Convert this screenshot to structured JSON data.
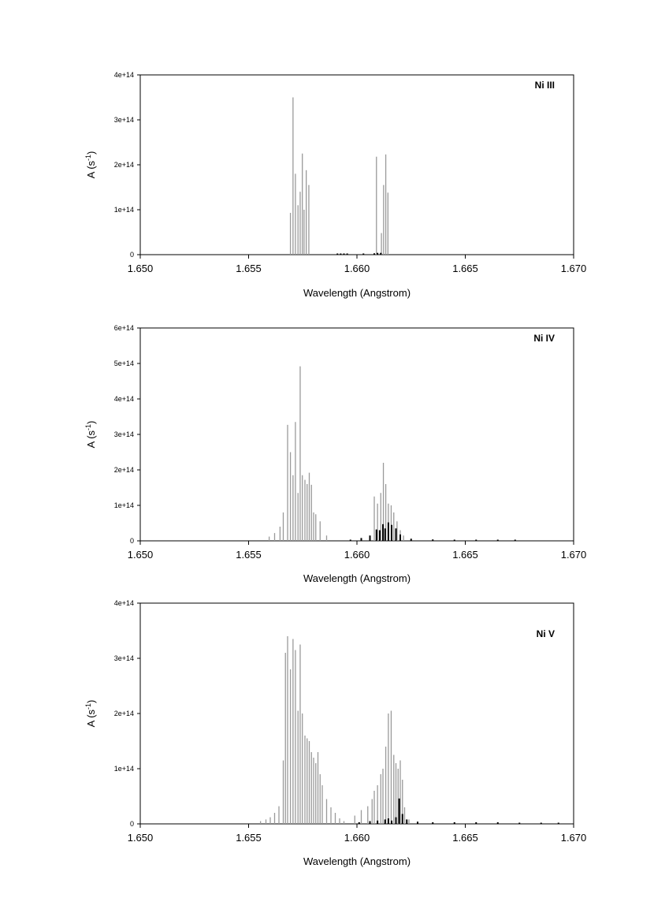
{
  "chart_data": [
    {
      "type": "bar",
      "panel_label": "Ni III",
      "xlabel": "Wavelength (Angstrom)",
      "ylabel_main": "A (s",
      "ylabel_sup": "-1",
      "ylabel_close": ")",
      "xlim": [
        1.65,
        1.67
      ],
      "ylim": [
        0,
        400000000000000.0
      ],
      "x_ticks": [
        1.65,
        1.655,
        1.66,
        1.665,
        1.67
      ],
      "x_tick_labels": [
        "1.650",
        "1.655",
        "1.660",
        "1.665",
        "1.670"
      ],
      "y_ticks": [
        0,
        100000000000000.0,
        200000000000000.0,
        300000000000000.0,
        400000000000000.0
      ],
      "y_tick_labels": [
        "0",
        "1e+14",
        "2e+14",
        "3e+14",
        "4e+14"
      ],
      "series": [
        {
          "color": "#9a9a9a",
          "x": [
            1.65693,
            1.65705,
            1.65716,
            1.65728,
            1.65738,
            1.65748,
            1.65756,
            1.65766,
            1.65778,
            1.6609,
            1.66113,
            1.66123,
            1.66133,
            1.66143
          ],
          "y": [
            93000000000000.0,
            350000000000000.0,
            180000000000000.0,
            110000000000000.0,
            140000000000000.0,
            225000000000000.0,
            100000000000000.0,
            188000000000000.0,
            155000000000000.0,
            218000000000000.0,
            48000000000000.0,
            155000000000000.0,
            223000000000000.0,
            138000000000000.0
          ]
        },
        {
          "color": "#000000",
          "x": [
            1.6591,
            1.65925,
            1.6594,
            1.65955,
            1.6603,
            1.6608,
            1.66095,
            1.6611
          ],
          "y": [
            2000000000000.0,
            2000000000000.0,
            2000000000000.0,
            2000000000000.0,
            2000000000000.0,
            3000000000000.0,
            4000000000000.0,
            4000000000000.0
          ]
        }
      ]
    },
    {
      "type": "bar",
      "panel_label": "Ni IV",
      "xlabel": "Wavelength (Angstrom)",
      "ylabel_main": "A (s",
      "ylabel_sup": "-1",
      "ylabel_close": ")",
      "xlim": [
        1.65,
        1.67
      ],
      "ylim": [
        0,
        600000000000000.0
      ],
      "x_ticks": [
        1.65,
        1.655,
        1.66,
        1.665,
        1.67
      ],
      "x_tick_labels": [
        "1.650",
        "1.655",
        "1.660",
        "1.665",
        "1.670"
      ],
      "y_ticks": [
        0,
        100000000000000.0,
        200000000000000.0,
        300000000000000.0,
        400000000000000.0,
        500000000000000.0,
        600000000000000.0
      ],
      "y_tick_labels": [
        "0",
        "1e+14",
        "2e+14",
        "3e+14",
        "4e+14",
        "5e+14",
        "6e+14"
      ],
      "series": [
        {
          "color": "#9a9a9a",
          "x": [
            1.65595,
            1.6562,
            1.65645,
            1.6566,
            1.6568,
            1.65693,
            1.65705,
            1.65716,
            1.65728,
            1.65738,
            1.65748,
            1.6576,
            1.6577,
            1.6578,
            1.6579,
            1.658,
            1.6581,
            1.6583,
            1.6586,
            1.6608,
            1.66095,
            1.6611,
            1.66122,
            1.66133,
            1.66145,
            1.66158,
            1.6617,
            1.66185,
            1.662,
            1.66215
          ],
          "y": [
            12000000000000.0,
            22000000000000.0,
            40000000000000.0,
            80000000000000.0,
            327000000000000.0,
            250000000000000.0,
            185000000000000.0,
            335000000000000.0,
            135000000000000.0,
            492000000000000.0,
            185000000000000.0,
            172000000000000.0,
            160000000000000.0,
            192000000000000.0,
            158000000000000.0,
            80000000000000.0,
            75000000000000.0,
            55000000000000.0,
            15000000000000.0,
            125000000000000.0,
            105000000000000.0,
            135000000000000.0,
            220000000000000.0,
            160000000000000.0,
            105000000000000.0,
            100000000000000.0,
            80000000000000.0,
            55000000000000.0,
            30000000000000.0,
            15000000000000.0
          ]
        },
        {
          "color": "#000000",
          "x": [
            1.6597,
            1.6602,
            1.6606,
            1.6609,
            1.66105,
            1.6612,
            1.6613,
            1.66145,
            1.6616,
            1.6618,
            1.662,
            1.6625,
            1.6635,
            1.6645,
            1.6655,
            1.6665,
            1.6673
          ],
          "y": [
            3000000000000.0,
            8000000000000.0,
            15000000000000.0,
            32000000000000.0,
            30000000000000.0,
            47000000000000.0,
            35000000000000.0,
            52000000000000.0,
            45000000000000.0,
            35000000000000.0,
            18000000000000.0,
            6000000000000.0,
            4000000000000.0,
            3000000000000.0,
            3000000000000.0,
            3000000000000.0,
            2000000000000.0
          ]
        }
      ]
    },
    {
      "type": "bar",
      "panel_label": "Ni V",
      "xlabel": "Wavelength (Angstrom)",
      "ylabel_main": "A (s",
      "ylabel_sup": "-1",
      "ylabel_close": ")",
      "xlim": [
        1.65,
        1.67
      ],
      "ylim": [
        0,
        400000000000000.0
      ],
      "x_ticks": [
        1.65,
        1.655,
        1.66,
        1.665,
        1.67
      ],
      "x_tick_labels": [
        "1.650",
        "1.655",
        "1.660",
        "1.665",
        "1.670"
      ],
      "y_ticks": [
        0,
        100000000000000.0,
        200000000000000.0,
        300000000000000.0,
        400000000000000.0
      ],
      "y_tick_labels": [
        "0",
        "1e+14",
        "2e+14",
        "3e+14",
        "4e+14"
      ],
      "series": [
        {
          "color": "#9a9a9a",
          "x": [
            1.65555,
            1.6558,
            1.656,
            1.6562,
            1.6564,
            1.6566,
            1.6567,
            1.6568,
            1.65693,
            1.65705,
            1.65716,
            1.65728,
            1.65738,
            1.65748,
            1.6576,
            1.6577,
            1.6578,
            1.6579,
            1.658,
            1.6581,
            1.6582,
            1.6583,
            1.6584,
            1.6586,
            1.6588,
            1.659,
            1.6592,
            1.6594,
            1.6599,
            1.6602,
            1.6605,
            1.6607,
            1.6608,
            1.66095,
            1.6611,
            1.6612,
            1.66133,
            1.66145,
            1.66158,
            1.6617,
            1.6618,
            1.6619,
            1.662,
            1.6621,
            1.6622,
            1.6624
          ],
          "y": [
            5000000000000.0,
            8000000000000.0,
            12000000000000.0,
            20000000000000.0,
            32000000000000.0,
            115000000000000.0,
            310000000000000.0,
            340000000000000.0,
            280000000000000.0,
            335000000000000.0,
            315000000000000.0,
            205000000000000.0,
            325000000000000.0,
            200000000000000.0,
            160000000000000.0,
            155000000000000.0,
            150000000000000.0,
            130000000000000.0,
            120000000000000.0,
            110000000000000.0,
            130000000000000.0,
            90000000000000.0,
            70000000000000.0,
            45000000000000.0,
            30000000000000.0,
            20000000000000.0,
            10000000000000.0,
            5000000000000.0,
            15000000000000.0,
            25000000000000.0,
            32000000000000.0,
            45000000000000.0,
            60000000000000.0,
            70000000000000.0,
            90000000000000.0,
            100000000000000.0,
            140000000000000.0,
            200000000000000.0,
            205000000000000.0,
            125000000000000.0,
            110000000000000.0,
            100000000000000.0,
            115000000000000.0,
            80000000000000.0,
            30000000000000.0,
            8000000000000.0
          ]
        },
        {
          "color": "#000000",
          "x": [
            1.6601,
            1.6606,
            1.66095,
            1.6613,
            1.66145,
            1.6616,
            1.6618,
            1.66195,
            1.6621,
            1.6623,
            1.6628,
            1.6635,
            1.6645,
            1.6655,
            1.6665,
            1.6675,
            1.6685,
            1.6693
          ],
          "y": [
            3000000000000.0,
            5000000000000.0,
            6000000000000.0,
            8000000000000.0,
            10000000000000.0,
            6000000000000.0,
            12000000000000.0,
            46000000000000.0,
            18000000000000.0,
            8000000000000.0,
            4000000000000.0,
            3000000000000.0,
            3000000000000.0,
            3000000000000.0,
            3000000000000.0,
            2000000000000.0,
            2000000000000.0,
            2000000000000.0
          ]
        }
      ]
    }
  ]
}
